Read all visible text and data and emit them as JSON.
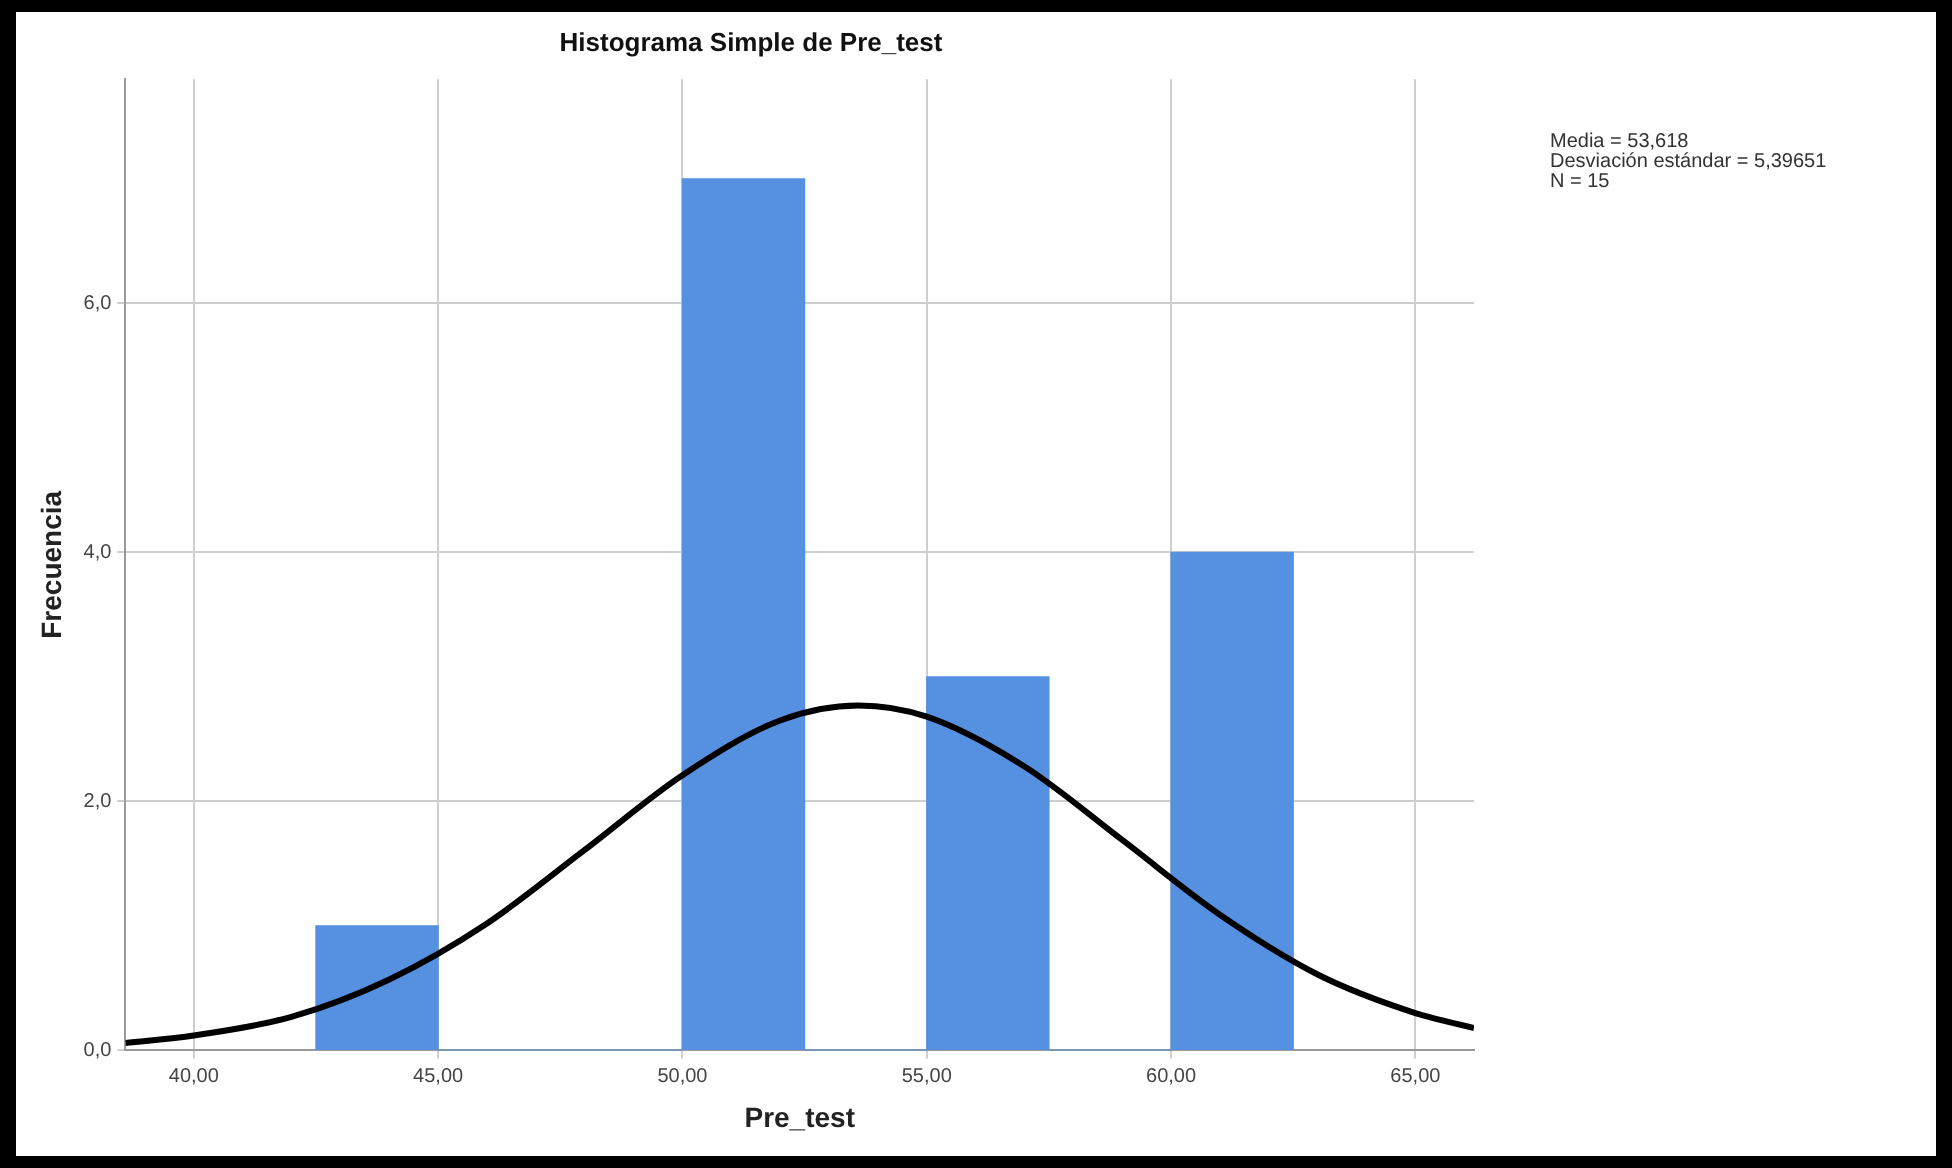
{
  "chart_data": {
    "type": "histogram",
    "title": "Histograma Simple de Pre_test",
    "xlabel": "Pre_test",
    "ylabel": "Frecuencia",
    "bins": [
      42.5,
      45,
      47.5,
      50,
      52.5,
      55,
      57.5,
      60,
      62.5
    ],
    "values": [
      1,
      0,
      0,
      7,
      0,
      3,
      0,
      4
    ],
    "color": "#5591e0",
    "series": [
      {
        "type": "line",
        "color": "#000000",
        "marker": "none",
        "x": [
          38.6,
          40,
          42,
          44,
          46,
          48,
          50,
          52,
          53.6,
          55,
          57,
          59,
          61,
          63,
          65,
          66.2
        ],
        "values": [
          0.06,
          0.12,
          0.27,
          0.57,
          1.02,
          1.61,
          2.21,
          2.65,
          2.77,
          2.68,
          2.28,
          1.69,
          1.09,
          0.61,
          0.3,
          0.18
        ]
      }
    ],
    "xlim": [
      38.6,
      66.2
    ],
    "xticks": [
      {
        "value": 40,
        "label": "40,00"
      },
      {
        "value": 45,
        "label": "45,00"
      },
      {
        "value": 50,
        "label": "50,00"
      },
      {
        "value": 55,
        "label": "55,00"
      },
      {
        "value": 60,
        "label": "60,00"
      },
      {
        "value": 65,
        "label": "65,00"
      }
    ],
    "ylim": [
      0,
      7.8
    ],
    "yticks": [
      {
        "value": 0,
        "label": "0,0"
      },
      {
        "value": 2,
        "label": "2,0"
      },
      {
        "value": 4,
        "label": "4,0"
      },
      {
        "value": 6,
        "label": "6,0"
      }
    ],
    "grid": true,
    "annotations": [
      "Media = 53,618",
      "Desviación estándar = 5,39651",
      "N = 15"
    ]
  }
}
